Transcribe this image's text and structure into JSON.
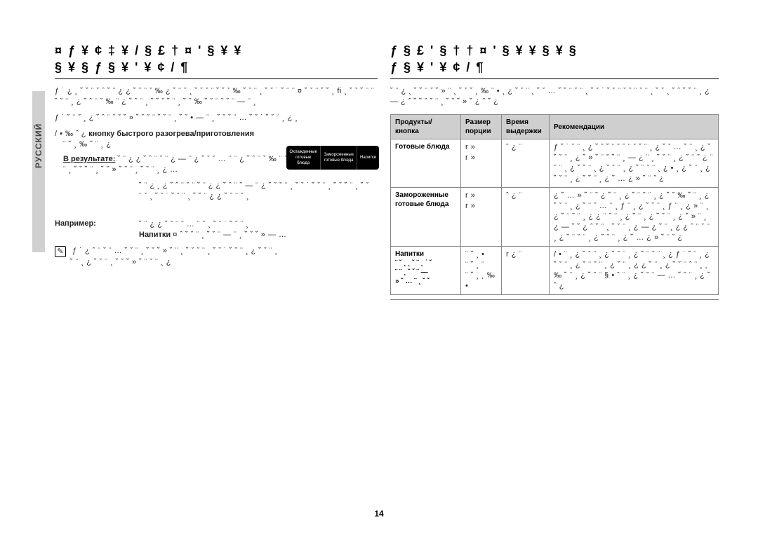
{
  "side_tab": "РУССКИЙ",
  "left": {
    "heading_l1": "¤ ƒ ¥ ¢ ‡   ¥    /    §    £    † ¤ ' § ¥   ¥",
    "heading_l2": "§    ¥   §        ƒ §    ¥ ' ¥  ¢  /  ¶",
    "para1": "ƒ ˙ ¿ ¸ ˘ ˘ ¨ ˇ ˆ  ˘ ¨ ¿ ¿ ˘ ˆ ¨ ˇ ‰ ¿ ˘ ¨ ˇ  ¸ ˘ ˇ ˇ ¨ ˘ ˘ ˇ ‰ ˘ ˇ ¨ ¸ ˘ ˇ ˙ ˘ ¨ ¨ ¤ ˘ ˇ ¨ ˘ ˘ ¸ fi ¸ ˘ ˇ ˘ ¨ ¨ ˘ ˇ ¨ ¸ ¿ ˘ ˆ ¨ ˇ ‰ ¨ ¿ ˘ ˆ ¨ ¸ ˘ ˘ ˇ  ˘ ¨ ¸ ˘ ˇ ‰ ˘ ˇ ¨ ˇ ˇ ¨ — ¨ ¸",
    "para2": "ƒ ˙ ˘ ¨ ˇ ¸ ¿ ˘ ˆ ¨ ˇ ˇ ˘ » ˘ ˇ ˇ ¨ ˘ ˇ ¨ ¸ ˘ ˇ • — ¨ ¸ ˘ ˇ ˇ ¨ … ˘ ˇ ˙ ˘ ˇ ¨ ¸ ¿ ¸",
    "bullet1_lead": "/ • ‰ ˆ ¿",
    "bullet1_bold": "кнопку быстрого разогрева/приготовления",
    "bullet1_tail": "¨ ˘ ¸ ‰ ˘ ¨ ¸ ¿",
    "result_label": "В результате:",
    "result_body": "˘ ¨ ¿ ¿ ˘ ˆ ¨ ˇ ¨ ¿ — ¨ ¿ ˘ ˇ ˇ … ¨ ¨ ¿ ˘ ˆ ¨ ˇ ‰ ¨ ˇ ˇ ¨ ¸ ˘ ˇ ˙ ˘ ƒ ˘ ˇ ¨ ¸ ˘ ˇ ˙ ˇ ¨ ¸ ˘ ˇ ˘ ¨ ¸ ˘ ˇ » ˘ ˇ ¨ ¸ ˘ ˇ ¨ ¸ ¿ …",
    "mid_para": "˘ ¨ ¿ ˛ ¿ ˘ ˆ ¨ ˇ ¨ ˘ ¨ ¿ ¿ ˘ ˆ ¨ ˇ — ¨ ¿ ˘ ˇ ˇ ¨ ¸ ˘ ˇ ˙ ˘ ˇ ¨ ¸ ˘ ˇ ˘ ¨ ¸ ˘ ˇ ¨ ˇ ¸ ˘ ˇ ˙ ˘ ˇ ¨ ¸ ˘ ˘ ¨ ¿ ¿ ˘ ˆ ¨ ˇ ¸",
    "example_label": "Например:",
    "example_line": "˘ ¨ ¿ ¿ ˘ ˆ ¨ ˇ … ¨ ˇ ¸ ˘ ˇ ˙ ˘ ˇ ¨ ¸",
    "example_bold": "Напитки",
    "example_tail": "¤ ˆ ˘ ˇ ¨ ¸ ˘ ˇ ¨ — ¨ ¸ ˘ ˇ ˘ » — …",
    "note_line1": "ƒ ˙ ¿ ˆ ¨ ˇ ¨ … ˘ ˇ ¨ ¸ ˘ ˇ ˘ » ˘ ¨ ¸ ˘ ˇ ˇ ¨ ¸ ˘ ˇ ˙ ˘ ˇ ¨ ¸ ¿ ˘ ˇ ¨ ¸",
    "note_line2": "˘ ¨ ¸ ¿ ˘ ˇ ¨ ¸ ˘ ˇ ˘ » ˘ ¨ ˇ ¨ ¸ ¿",
    "panel": [
      "Охлажденные\nготовые блюда",
      "Замороженные\nготовые блюда",
      "Напитки"
    ]
  },
  "right": {
    "heading_l1": "ƒ  §  £ ' §  †    †  ¤ ' § ¥   ¥  §    ¥  §",
    "heading_l2": "ƒ §    ¥ ' ¥  ¢  /  ¶",
    "pre_table": "˘ ¨ ¿ ¸ ˘ ˘ ¨ ˇ ˘ » ¨ ¸ ˘ ˇ ˘ ¸ ‰ ¨ • ¸ ¿ ˘ ˇ ¨ ¸ ˘ ˇ … ˘ ˘ ¨ ˇ ¨ ¸ ˘ ˇ ˙ ˘ ˇ ¨ ˇ ˆ ¨ ˇ ¨ ¸ ˘ ˇ ¸ ˘ ˆ ˘ ˘ ¨ ¸ ¿ — ¿ ˆ ˘ ˘ ˇ ˘ ¨ ¸ ˘ ˇ ˘ » ˘ ¿ ˆ ˘ ¿",
    "table": {
      "headers": [
        "Продукты/\nкнопка",
        "Размер\nпорции",
        "Время\nвыдержки",
        "Рекомендации"
      ],
      "rows": [
        {
          "c0": "Готовые блюда",
          "c1": "r   »\nr   »",
          "c2": "ˆ  ¿ ¨",
          "c3": "ƒ ˘ ˙ ˇ ¨ ¸ ¿ ˘ ˇ ˘ ¨ ˇ ˆ ¨ ˇ ˘ ¨ ¸ ¿ ˘ ˇ … ˘ ¨ ¸ ¿ ˘ ˘ ˇ ¨ ¸ ¿ ˘ » ˘ ¨ ˇ ˘ ¨ ¸ — ¿ ¨ ¸ ˘ ˇ ¨ ¸ ¿ ˘ ¨ ˇ ¿ ¨ ˇ ¨ ¸ ¿ ˘ ˘ ¨ ¸ ¿ ˘ ˇ ¨ ¸ ¿ ˘ ¨ ˇ ¨ ¸ ¿ • ¸ ¿ ˘ ¨ ¸ ¿ ˘ ˇ ¨ ¸ ¿ ˘ ˘ ¨ ¸ ¿ ˘ … ¿ » ˘ ¨ ˇ ¿"
        },
        {
          "c0": "Замороженные\nготовые блюда",
          "c1": "r   »\nr   »",
          "c2": "ˆ  ¿ ¨",
          "c3": "¿ ˘ … » ˘ ¨ ˇ ¿ ˘ ¨ ¸ ¿ ˘ ¨ ˇ ¨ ¸ ¿ ˘ ˇ ‰ ˘ ¨ ¸ ¿ ˘ ˇ ¨ ¸ ¿ ˘ ¨ ˇ … ¨ ¸ ƒ ¨ ¸ ¿ ˘ ˇ ¨ ¸ ƒ ¨ ¸ ¿ » ¨ ¸ ¿ ˘ ¨ ˇ ¨ ¸ ¿ ¿ ¨ ˇ ¨ ¸ ¿ ˘ ¨ ¸ ¿ ˘ ˇ ¨ ¸ ¿ ˘ » ¨ ¸ ¿ — ˘ ˘ ¿ ˆ ˘ ¨ ¸ ˘ ˇ ¨ ¸ ¿ — ¿ ˘ ¨ ¸ ¿ ¿ ˆ ¨ ˇ ¨ ¸ ¿ ˘ ¨ ˇ ¨ ¸ ¿ ˘ ˇ ¨ ¸ ¿ ˘ … ¿ » ˘ ¨ ˇ ¿"
        },
        {
          "c0": "Напитки\n¨ ˘ ¸ ˛ ˘ ¨ ¸ ˙ ˘\n¨ ¨ ¸ ˘ ˇ ¨ —\n» ˘ … ¨ ¸ ˘ ˇ",
          "c1": "¨ ˘ ¸ •\n¨ ˘ ¸ ¨\n¨ ˘ ¸ ˛ ‰ •",
          "c2": "r  ¿ ¨",
          "c3": "/ • ¨ ¸ ¿ ˘ ˆ ¨ ¸ ¿ ˘ ˇ ¨ ¸ ¿ ˘ ¨ ˇ ¨ ¸ ¿ ƒ ˙ ˘ ¨ ¸ ¿ ˘ ˇ ¨ ¸ ¿ ˘ ¨ ˇ ¨ ¸ ¿ ˘ ¨ ¸ ¿ ¿ ˘ ¨ ¸ ¿ ˘ ˇ ¨ ˆ ¨ ¸ ˛ ‰ ˘ ¨ ¸ ¿ ˘ ˇ ¨ § • ˆ ¨ ¸ ¿ ˘ ˇ ¨ — … ˘ ˇ ¨ ¸ ¿ ˘ ˆ ¿"
        }
      ]
    }
  },
  "page_number": "14"
}
